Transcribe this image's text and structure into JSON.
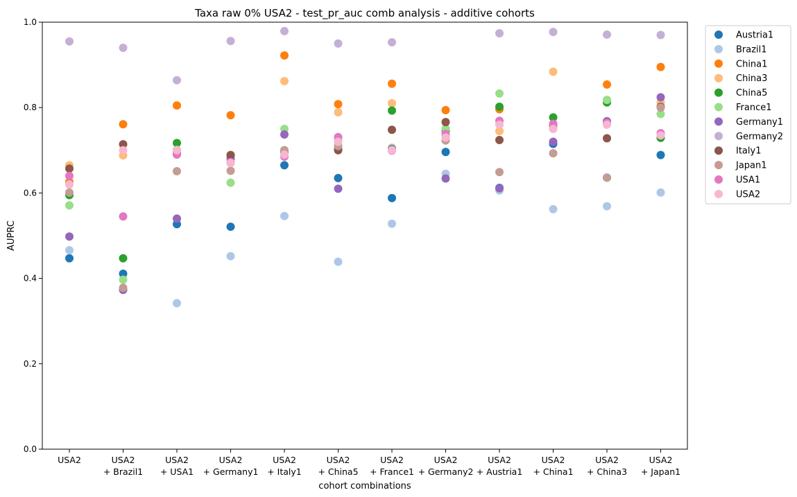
{
  "chart_data": {
    "type": "scatter",
    "title": "Taxa raw 0% USA2 - test_pr_auc comb analysis - additive cohorts",
    "xlabel": "cohort combinations",
    "ylabel": "AUPRC",
    "ylim": [
      0,
      1
    ],
    "yticks": [
      "0.0",
      "0.2",
      "0.4",
      "0.6",
      "0.8",
      "1.0"
    ],
    "categories": [
      [
        "USA2"
      ],
      [
        "USA2",
        "+ Brazil1"
      ],
      [
        "USA2",
        "+ USA1"
      ],
      [
        "USA2",
        "+ Germany1"
      ],
      [
        "USA2",
        "+ Italy1"
      ],
      [
        "USA2",
        "+ China5"
      ],
      [
        "USA2",
        "+ France1"
      ],
      [
        "USA2",
        "+ Germany2"
      ],
      [
        "USA2",
        "+ Austria1"
      ],
      [
        "USA2",
        "+ China1"
      ],
      [
        "USA2",
        "+ China3"
      ],
      [
        "USA2",
        "+ Japan1"
      ]
    ],
    "legend_position": "outside-top-right",
    "grid": false,
    "series": [
      {
        "name": "Austria1",
        "color": "#1f77b4",
        "values": [
          0.447,
          0.411,
          0.527,
          0.521,
          0.665,
          0.635,
          0.588,
          0.696,
          0.612,
          0.715,
          0.636,
          0.689
        ]
      },
      {
        "name": "Brazil1",
        "color": "#aec7e8",
        "values": [
          0.466,
          0.376,
          0.342,
          0.452,
          0.546,
          0.439,
          0.528,
          0.645,
          0.606,
          0.562,
          0.569,
          0.601
        ]
      },
      {
        "name": "China1",
        "color": "#ff7f0e",
        "values": [
          0.626,
          0.761,
          0.805,
          0.782,
          0.922,
          0.808,
          0.856,
          0.794,
          0.796,
          0.754,
          0.854,
          0.895
        ]
      },
      {
        "name": "China3",
        "color": "#ffbb78",
        "values": [
          0.665,
          0.688,
          0.698,
          0.686,
          0.862,
          0.789,
          0.81,
          0.734,
          0.745,
          0.884,
          0.818,
          0.812
        ]
      },
      {
        "name": "China5",
        "color": "#2ca02c",
        "values": [
          0.595,
          0.447,
          0.717,
          0.688,
          0.696,
          0.703,
          0.793,
          0.746,
          0.802,
          0.777,
          0.812,
          0.729
        ]
      },
      {
        "name": "France1",
        "color": "#98df8a",
        "values": [
          0.571,
          0.397,
          0.701,
          0.624,
          0.75,
          0.726,
          0.706,
          0.751,
          0.833,
          0.755,
          0.818,
          0.785
        ]
      },
      {
        "name": "Germany1",
        "color": "#9467bd",
        "values": [
          0.498,
          0.373,
          0.54,
          0.68,
          0.737,
          0.61,
          0.703,
          0.634,
          0.611,
          0.72,
          0.768,
          0.824
        ]
      },
      {
        "name": "Germany2",
        "color": "#c5b0d5",
        "values": [
          0.955,
          0.94,
          0.864,
          0.956,
          0.979,
          0.95,
          0.953,
          0.73,
          0.974,
          0.977,
          0.971,
          0.97
        ]
      },
      {
        "name": "Italy1",
        "color": "#8c564b",
        "values": [
          0.657,
          0.714,
          0.692,
          0.689,
          0.7,
          0.7,
          0.748,
          0.766,
          0.724,
          0.76,
          0.728,
          0.802
        ]
      },
      {
        "name": "Japan1",
        "color": "#c49c94",
        "values": [
          0.601,
          0.378,
          0.651,
          0.652,
          0.7,
          0.71,
          0.7,
          0.723,
          0.649,
          0.693,
          0.636,
          0.8
        ]
      },
      {
        "name": "USA1",
        "color": "#e377c2",
        "values": [
          0.64,
          0.545,
          0.69,
          0.672,
          0.685,
          0.731,
          0.699,
          0.738,
          0.769,
          0.762,
          0.764,
          0.74
        ]
      },
      {
        "name": "USA2",
        "color": "#f7b6d2",
        "values": [
          0.62,
          0.7,
          0.7,
          0.67,
          0.69,
          0.72,
          0.7,
          0.73,
          0.76,
          0.75,
          0.76,
          0.735
        ]
      }
    ]
  }
}
